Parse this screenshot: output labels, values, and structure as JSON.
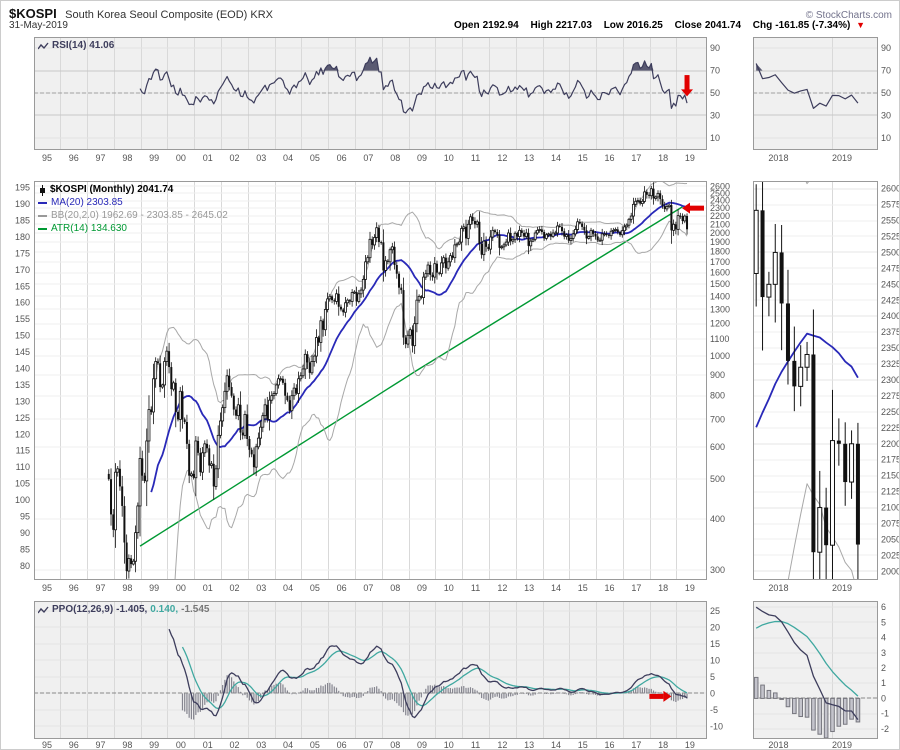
{
  "header": {
    "symbol": "$KOSPI",
    "title": "South Korea Seoul Composite (EOD) KRX",
    "copyright": "© StockCharts.com",
    "date": "31-May-2019",
    "open_label": "Open",
    "open_value": "2192.94",
    "high_label": "High",
    "high_value": "2217.03",
    "low_label": "Low",
    "low_value": "2016.25",
    "close_label": "Close",
    "close_value": "2041.74",
    "chg_label": "Chg",
    "chg_value": "-161.85 (-7.34%)",
    "chg_arrow": "▼"
  },
  "legends": {
    "rsi_label": "RSI(14) 41.06",
    "kospi_label": "$KOSPI (Monthly) 2041.74",
    "ma_label": "MA(20) 2303.85",
    "bb_label": "BB(20,2.0) 1962.69 - 2303.85 - 2645.02",
    "atr_label": "ATR(14) 134.630",
    "ppo_label": "PPO(12,26,9)",
    "ppo_v1": "-1.405,",
    "ppo_v2": "0.140,",
    "ppo_v3": "-1.545"
  },
  "colors": {
    "red_accent": "#e10000",
    "rsi_line": "#3d3d5c",
    "rsi_fill": "#5a5a72",
    "ma_blue": "#2929b8",
    "bb_gray": "#a8a8a8",
    "atr_green": "#009933",
    "ppo_line": "#3d3d5c",
    "ppo_signal": "#3fa8a0",
    "hist_gray": "#85858f",
    "candle": "#111111",
    "grid": "#d9d9d9",
    "grid_light": "#efefef",
    "panel_border": "#9a9a9a",
    "axis_text": "#555555",
    "indicator_bg": "#f0f0f0",
    "price_bg": "#ffffff"
  },
  "chart_data": {
    "type": "candlestick",
    "symbol": "$KOSPI",
    "timeframe": "monthly",
    "start": "1997-10",
    "last_close": 2041.74,
    "closes": [
      500,
      410,
      376,
      520,
      530,
      480,
      430,
      350,
      298,
      320,
      310,
      315,
      370,
      430,
      562,
      510,
      495,
      620,
      740,
      730,
      880,
      970,
      960,
      840,
      850,
      970,
      1028,
      940,
      830,
      860,
      730,
      700,
      820,
      700,
      690,
      610,
      510,
      515,
      504,
      620,
      580,
      520,
      580,
      610,
      595,
      540,
      545,
      480,
      530,
      640,
      694,
      748,
      820,
      895,
      840,
      800,
      740,
      715,
      760,
      650,
      640,
      720,
      627,
      590,
      575,
      535,
      600,
      630,
      670,
      715,
      760,
      700,
      780,
      800,
      810,
      850,
      880,
      880,
      860,
      800,
      780,
      735,
      800,
      835,
      810,
      880,
      895,
      930,
      1010,
      965,
      910,
      970,
      1000,
      1110,
      1080,
      1220,
      1160,
      1300,
      1380,
      1400,
      1370,
      1360,
      1420,
      1320,
      1300,
      1280,
      1350,
      1370,
      1360,
      1430,
      1434,
      1360,
      1420,
      1450,
      1540,
      1700,
      1740,
      1930,
      1870,
      1950,
      2060,
      1900,
      1897,
      1620,
      1710,
      1700,
      1820,
      1850,
      1670,
      1590,
      1470,
      1450,
      1110,
      1070,
      1124,
      1160,
      1060,
      1200,
      1370,
      1400,
      1390,
      1560,
      1590,
      1670,
      1580,
      1560,
      1682,
      1600,
      1590,
      1690,
      1740,
      1640,
      1700,
      1760,
      1740,
      1870,
      1880,
      1900,
      2051,
      2070,
      1940,
      2100,
      2190,
      2140,
      2100,
      2130,
      1880,
      1770,
      1910,
      1850,
      1826,
      1955,
      2030,
      2010,
      1980,
      1840,
      1850,
      1870,
      1900,
      2000,
      1910,
      1930,
      1997,
      1960,
      2030,
      2000,
      1960,
      2000,
      1860,
      1910,
      1930,
      2000,
      2030,
      2040,
      2011,
      1940,
      1980,
      1990,
      1960,
      2000,
      2000,
      2080,
      2070,
      2020,
      1960,
      1980,
      1916,
      1940,
      1990,
      2040,
      2130,
      2110,
      2070,
      2030,
      1940,
      1960,
      2030,
      1990,
      1961,
      1920,
      1920,
      1990,
      1990,
      1980,
      1970,
      2020,
      2030,
      2040,
      2010,
      1980,
      2026,
      2070,
      2090,
      2160,
      2200,
      2350,
      2390,
      2400,
      2360,
      2390,
      2520,
      2480,
      2467,
      2566,
      2430,
      2450,
      2500,
      2420,
      2330,
      2290,
      2320,
      2340,
      2030,
      2100,
      2041,
      2205,
      2200,
      2140,
      2200,
      2042
    ],
    "indicators": {
      "rsi_period": 14,
      "rsi_last": 41.06,
      "ma_period": 20,
      "ma_last": 2303.85,
      "bb_params": [
        20,
        2.0
      ],
      "bb_last": [
        1962.69,
        2303.85,
        2645.02
      ],
      "atr_period": 14,
      "atr_last": 134.63,
      "ppo_params": [
        12,
        26,
        9
      ],
      "ppo_last": [
        -1.405,
        0.14,
        -1.545
      ]
    },
    "atr_keyframes": [
      [
        47,
        86
      ],
      [
        170,
        139
      ],
      [
        292,
        190
      ]
    ],
    "axes": {
      "price_ticks": [
        2600,
        2500,
        2400,
        2300,
        2200,
        2100,
        2000,
        1900,
        1800,
        1700,
        1600,
        1500,
        1400,
        1300,
        1200,
        1100,
        1000,
        900,
        800,
        700,
        600,
        500,
        400,
        300
      ],
      "left_ticks": [
        195,
        190,
        185,
        180,
        175,
        170,
        165,
        160,
        155,
        150,
        145,
        140,
        135,
        130,
        125,
        120,
        115,
        110,
        105,
        100,
        95,
        90,
        85,
        80
      ],
      "zoom_price_ticks": [
        2600,
        2575,
        2550,
        2525,
        2500,
        2475,
        2450,
        2425,
        2400,
        2375,
        2350,
        2325,
        2300,
        2275,
        2250,
        2225,
        2200,
        2175,
        2150,
        2125,
        2100,
        2075,
        2050,
        2025,
        2000
      ],
      "rsi_ticks": [
        90,
        70,
        50,
        30,
        10
      ],
      "ppo_ticks": [
        25,
        20,
        15,
        10,
        5,
        0,
        -5,
        -10
      ],
      "ppo_zoom_ticks": [
        6,
        5,
        4,
        3,
        2,
        1,
        0,
        -1,
        -2
      ],
      "price_log_scale": true
    },
    "x_year_labels": [
      "95",
      "96",
      "97",
      "98",
      "99",
      "00",
      "01",
      "02",
      "03",
      "04",
      "05",
      "06",
      "07",
      "08",
      "09",
      "10",
      "11",
      "12",
      "13",
      "14",
      "15",
      "16",
      "17",
      "18",
      "19"
    ],
    "zoom_x_labels": [
      "2018",
      "2019"
    ],
    "zoom_start": "2018-01",
    "annotations": {
      "rsi_arrow": {
        "month": 292,
        "from": 66,
        "to": 47
      },
      "price_arrow": {
        "value": 2300
      },
      "ppo_arrow": {
        "month": 285,
        "value": -0.9
      }
    }
  }
}
